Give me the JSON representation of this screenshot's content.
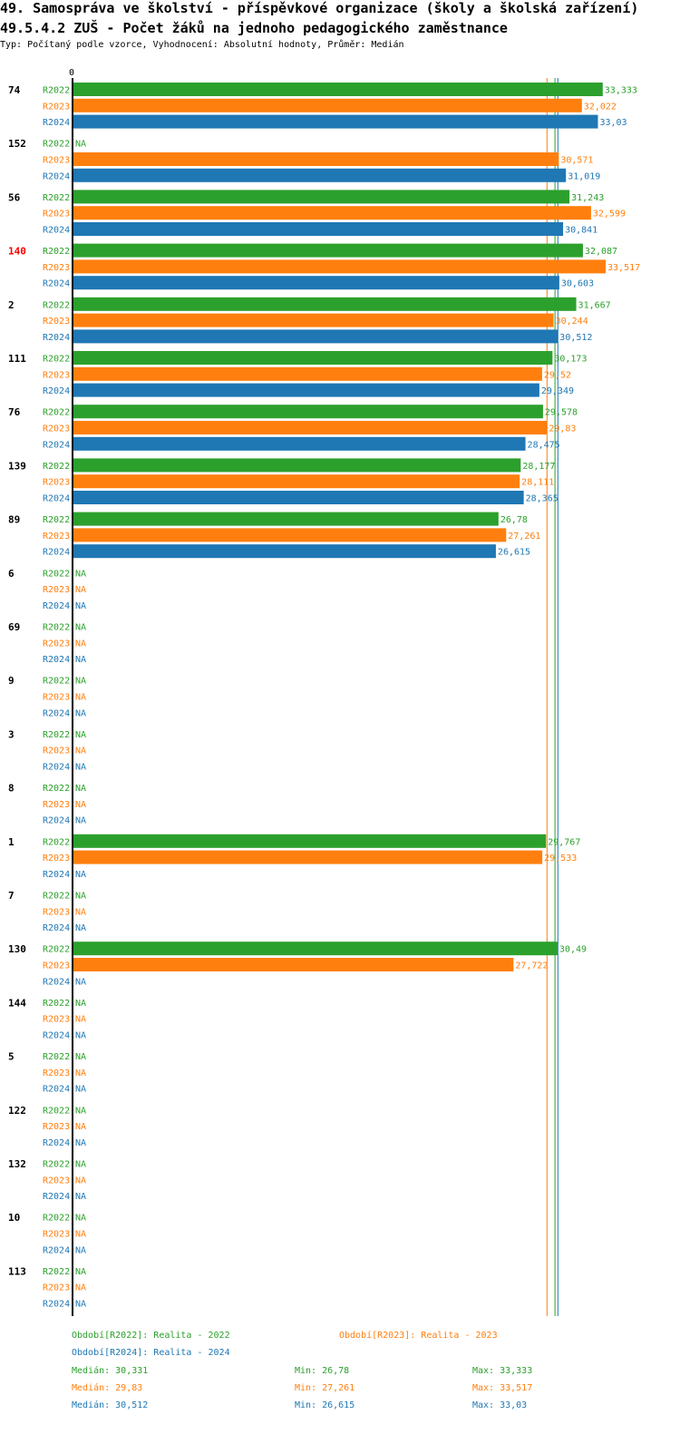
{
  "header": {
    "title": "49. Samospráva ve školství - příspěvkové organizace (školy a školská zařízení)",
    "subtitle": "49.5.4.2 ZUŠ - Počet žáků na jednoho pedagogického zaměstnance",
    "type_line": "Typ: Počítaný podle vzorce, Vyhodnocení: Absolutní hodnoty, Průměr: Medián"
  },
  "chart_data": {
    "type": "bar",
    "orientation": "horizontal",
    "x_zero_label": "0",
    "xlim": [
      0,
      34.2
    ],
    "highlight_category": "140",
    "categories": [
      "74",
      "152",
      "56",
      "140",
      "2",
      "111",
      "76",
      "139",
      "89",
      "6",
      "69",
      "9",
      "3",
      "8",
      "1",
      "7",
      "130",
      "144",
      "5",
      "122",
      "132",
      "10",
      "113"
    ],
    "series": [
      {
        "name": "R2022",
        "color": "#2ca02c",
        "values": [
          33.333,
          null,
          31.243,
          32.087,
          31.667,
          30.173,
          29.578,
          28.177,
          26.78,
          null,
          null,
          null,
          null,
          null,
          29.767,
          null,
          30.49,
          null,
          null,
          null,
          null,
          null,
          null
        ],
        "labels": [
          "33,333",
          "NA",
          "31,243",
          "32,087",
          "31,667",
          "30,173",
          "29,578",
          "28,177",
          "26,78",
          "NA",
          "NA",
          "NA",
          "NA",
          "NA",
          "29,767",
          "NA",
          "30,49",
          "NA",
          "NA",
          "NA",
          "NA",
          "NA",
          "NA"
        ]
      },
      {
        "name": "R2023",
        "color": "#ff7f0e",
        "values": [
          32.022,
          30.571,
          32.599,
          33.517,
          30.244,
          29.52,
          29.83,
          28.111,
          27.261,
          null,
          null,
          null,
          null,
          null,
          29.533,
          null,
          27.722,
          null,
          null,
          null,
          null,
          null,
          null
        ],
        "labels": [
          "32,022",
          "30,571",
          "32,599",
          "33,517",
          "30,244",
          "29,52",
          "29,83",
          "28,111",
          "27,261",
          "NA",
          "NA",
          "NA",
          "NA",
          "NA",
          "29,533",
          "NA",
          "27,722",
          "NA",
          "NA",
          "NA",
          "NA",
          "NA",
          "NA"
        ]
      },
      {
        "name": "R2024",
        "color": "#1f77b4",
        "values": [
          33.03,
          31.019,
          30.841,
          30.603,
          30.512,
          29.349,
          28.475,
          28.365,
          26.615,
          null,
          null,
          null,
          null,
          null,
          null,
          null,
          null,
          null,
          null,
          null,
          null,
          null,
          null
        ],
        "labels": [
          "33,03",
          "31,019",
          "30,841",
          "30,603",
          "30,512",
          "29,349",
          "28,475",
          "28,365",
          "26,615",
          "NA",
          "NA",
          "NA",
          "NA",
          "NA",
          "NA",
          "NA",
          "NA",
          "NA",
          "NA",
          "NA",
          "NA",
          "NA",
          "NA"
        ]
      }
    ],
    "reference_lines": [
      {
        "series": "R2022",
        "value": 30.331
      },
      {
        "series": "R2023",
        "value": 29.83
      },
      {
        "series": "R2024",
        "value": 30.512
      }
    ],
    "legend": [
      {
        "text": "Období[R2022]: Realita - 2022",
        "color": "#2ca02c"
      },
      {
        "text": "Období[R2023]: Realita - 2023",
        "color": "#ff7f0e"
      },
      {
        "text": "Období[R2024]: Realita - 2024",
        "color": "#1f77b4"
      }
    ],
    "stats": [
      {
        "median": "Medián: 30,331",
        "min": "Min: 26,78",
        "max": "Max: 33,333",
        "color": "#2ca02c"
      },
      {
        "median": "Medián: 29,83",
        "min": "Min: 27,261",
        "max": "Max: 33,517",
        "color": "#ff7f0e"
      },
      {
        "median": "Medián: 30,512",
        "min": "Min: 26,615",
        "max": "Max: 33,03",
        "color": "#1f77b4"
      }
    ]
  }
}
